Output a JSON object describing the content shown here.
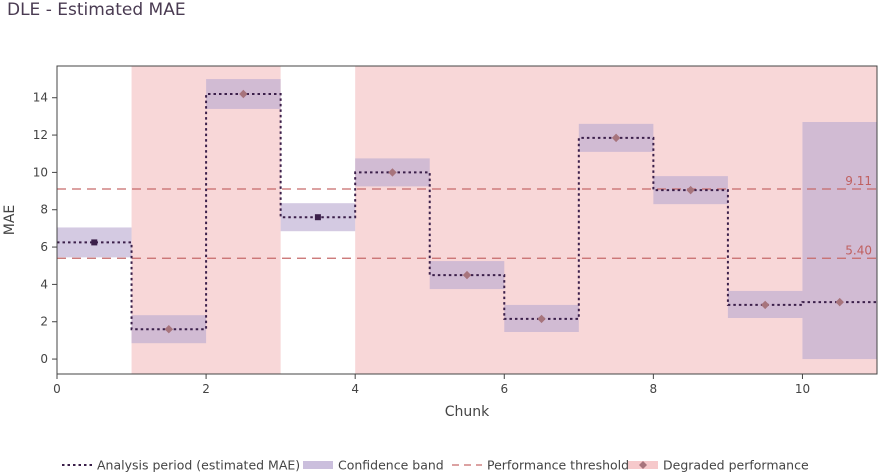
{
  "chart_data": {
    "type": "line",
    "title": "DLE - Estimated MAE",
    "xlabel": "Chunk",
    "ylabel": "MAE",
    "xlim": [
      0,
      11
    ],
    "ylim": [
      -0.8,
      15.7
    ],
    "x_ticks": [
      0,
      2,
      4,
      6,
      8,
      10
    ],
    "y_ticks": [
      0,
      2,
      4,
      6,
      8,
      10,
      12,
      14
    ],
    "chunks": [
      {
        "start": 0,
        "end": 1,
        "value": 6.25,
        "lower": 5.45,
        "upper": 7.05,
        "degraded": false
      },
      {
        "start": 1,
        "end": 2,
        "value": 1.6,
        "lower": 0.85,
        "upper": 2.35,
        "degraded": true
      },
      {
        "start": 2,
        "end": 3,
        "value": 14.2,
        "lower": 13.4,
        "upper": 15.0,
        "degraded": true
      },
      {
        "start": 3,
        "end": 4,
        "value": 7.6,
        "lower": 6.85,
        "upper": 8.35,
        "degraded": false
      },
      {
        "start": 4,
        "end": 5,
        "value": 10.0,
        "lower": 9.25,
        "upper": 10.75,
        "degraded": true
      },
      {
        "start": 5,
        "end": 6,
        "value": 4.5,
        "lower": 3.75,
        "upper": 5.25,
        "degraded": true
      },
      {
        "start": 6,
        "end": 7,
        "value": 2.15,
        "lower": 1.45,
        "upper": 2.9,
        "degraded": true
      },
      {
        "start": 7,
        "end": 8,
        "value": 11.85,
        "lower": 11.1,
        "upper": 12.6,
        "degraded": true
      },
      {
        "start": 8,
        "end": 9,
        "value": 9.05,
        "lower": 8.3,
        "upper": 9.8,
        "degraded": true
      },
      {
        "start": 9,
        "end": 10,
        "value": 2.9,
        "lower": 2.2,
        "upper": 3.65,
        "degraded": true
      },
      {
        "start": 10,
        "end": 11,
        "value": 3.05,
        "lower": 0.0,
        "upper": 12.7,
        "degraded": true
      }
    ],
    "thresholds": [
      {
        "value": 9.11,
        "label": "9.11"
      },
      {
        "value": 5.4,
        "label": "5.40"
      }
    ],
    "legend": {
      "placement": "bottom",
      "entries": [
        {
          "key": "line",
          "label": "Analysis period (estimated MAE)"
        },
        {
          "key": "band",
          "label": "Confidence band"
        },
        {
          "key": "threshold",
          "label": "Performance threshold"
        },
        {
          "key": "degraded",
          "label": "Degraded performance"
        }
      ]
    },
    "colors": {
      "line": "#3b1f4a",
      "band": "#b9a9d1",
      "degraded_bg": "#f4bcbe",
      "degraded_marker": "#a7747c",
      "normal_marker": "#3b1f4a",
      "threshold": "#c66a6a"
    }
  }
}
